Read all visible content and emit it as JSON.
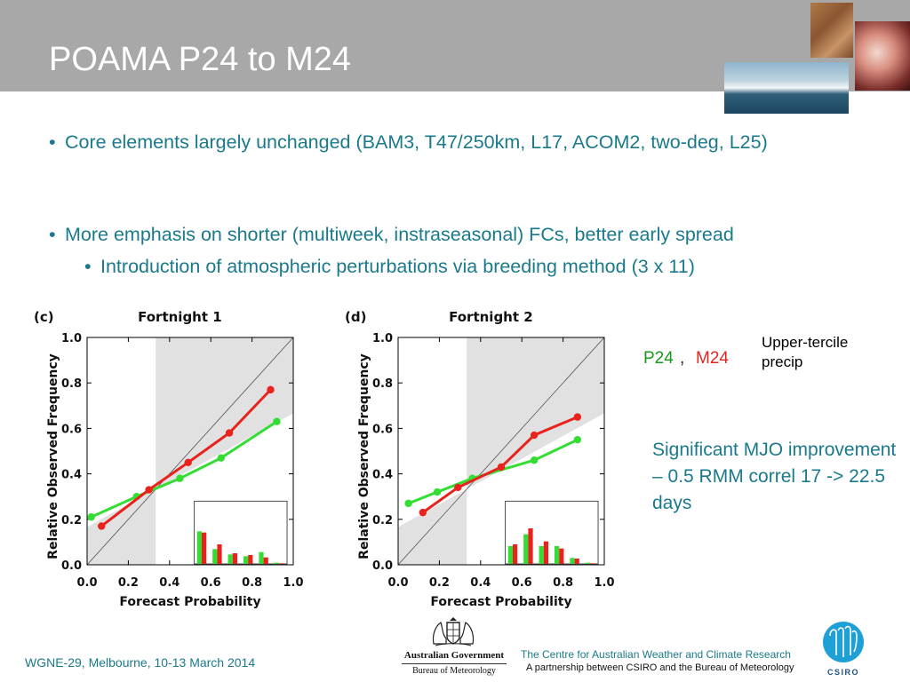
{
  "slide": {
    "title": "POAMA P24 to M24",
    "bullets": [
      "Core elements largely unchanged (BAM3, T47/250km, L17, ACOM2, two-deg, L25)",
      "More emphasis on shorter (multiweek, instraseasonal) FCs, better early spread"
    ],
    "sub_bullet": "Introduction of atmospheric perturbations via breeding method (3 x 11)",
    "legend": {
      "p24": "P24",
      "comma": ",",
      "m24": "M24",
      "upper_tercile": "Upper-tercile precip"
    },
    "note": "Significant MJO improvement – 0.5 RMM correl 17 -> 22.5 days",
    "footer": {
      "event": "WGNE-29, Melbourne, 10-13 March 2014",
      "centre_name": "The Centre for Australian Weather and Climate Research",
      "partnership": "A partnership between CSIRO and the Bureau of Meteorology",
      "gov_line1": "Australian Government",
      "gov_line2": "Bureau of Meteorology",
      "csiro_label": "CSIRO"
    },
    "colors": {
      "teal_text": "#1a7a8c",
      "title_band": "#a8a8a8",
      "p24": "#33dd33",
      "m24": "#e8221c",
      "shading": "#e1e1e1"
    },
    "icons": [
      "dry-cracked-earth-photo",
      "storm-cloud-photo",
      "ocean-wave-photo",
      "australian-coat-of-arms-icon",
      "csiro-logo-icon"
    ]
  },
  "chart_data": [
    {
      "type": "line",
      "panel_label": "(c)",
      "title": "Fortnight  1",
      "xlabel": "Forecast  Probability",
      "ylabel": "Relative  Observed  Frequency",
      "xlim": [
        0,
        1
      ],
      "ylim": [
        0,
        1
      ],
      "xticks": [
        "0.0",
        "0.2",
        "0.4",
        "0.6",
        "0.8",
        "1.0"
      ],
      "yticks": [
        "0.0",
        "0.2",
        "0.4",
        "0.6",
        "0.8",
        "1.0"
      ],
      "shaded_x_from": 0.333,
      "diagonal": true,
      "series": [
        {
          "name": "P24",
          "color": "#33dd33",
          "x": [
            0.02,
            0.24,
            0.45,
            0.65,
            0.92
          ],
          "y": [
            0.21,
            0.3,
            0.38,
            0.47,
            0.63
          ]
        },
        {
          "name": "M24",
          "color": "#e8221c",
          "x": [
            0.07,
            0.3,
            0.49,
            0.69,
            0.89
          ],
          "y": [
            0.17,
            0.33,
            0.45,
            0.58,
            0.77
          ]
        }
      ],
      "histogram": {
        "categories": [
          "1",
          "2",
          "3",
          "4",
          "5",
          "6"
        ],
        "series": [
          {
            "name": "P24",
            "values": [
              0.55,
              0.25,
              0.16,
              0.13,
              0.2,
              0.02
            ]
          },
          {
            "name": "M24",
            "values": [
              0.53,
              0.33,
              0.18,
              0.15,
              0.11,
              0.01
            ]
          }
        ]
      }
    },
    {
      "type": "line",
      "panel_label": "(d)",
      "title": "Fortnight  2",
      "xlabel": "Forecast  Probability",
      "ylabel": "Relative  Observed  Frequency",
      "xlim": [
        0,
        1
      ],
      "ylim": [
        0,
        1
      ],
      "xticks": [
        "0.0",
        "0.2",
        "0.4",
        "0.6",
        "0.8",
        "1.0"
      ],
      "yticks": [
        "0.0",
        "0.2",
        "0.4",
        "0.6",
        "0.8",
        "1.0"
      ],
      "shaded_x_from": 0.333,
      "diagonal": true,
      "series": [
        {
          "name": "P24",
          "color": "#33dd33",
          "x": [
            0.05,
            0.19,
            0.36,
            0.66,
            0.87
          ],
          "y": [
            0.27,
            0.32,
            0.38,
            0.46,
            0.55
          ]
        },
        {
          "name": "M24",
          "color": "#e8221c",
          "x": [
            0.12,
            0.29,
            0.5,
            0.66,
            0.87
          ],
          "y": [
            0.23,
            0.34,
            0.43,
            0.57,
            0.65
          ]
        }
      ],
      "histogram": {
        "categories": [
          "1",
          "2",
          "3",
          "4",
          "5",
          "6"
        ],
        "series": [
          {
            "name": "P24",
            "values": [
              0.3,
              0.5,
              0.3,
              0.3,
              0.1,
              0.02
            ]
          },
          {
            "name": "M24",
            "values": [
              0.33,
              0.6,
              0.38,
              0.26,
              0.09,
              0.01
            ]
          }
        ]
      }
    }
  ]
}
